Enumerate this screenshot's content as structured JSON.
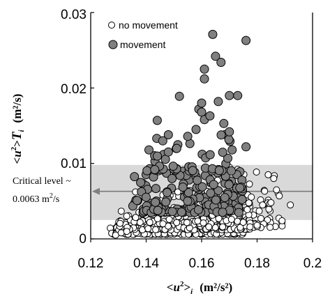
{
  "chart_data": {
    "type": "scatter",
    "xlabel": {
      "lt": "<",
      "var": "u",
      "sup": "2",
      "gt": ">",
      "sub": "i",
      "units": "(m²/s²)"
    },
    "ylabel": {
      "lt": "<",
      "var": "u",
      "sup": "2",
      "gt": ">",
      "T": "T",
      "sub": "i",
      "units": "(m²/s)"
    },
    "xlim": [
      0.12,
      0.2
    ],
    "ylim": [
      0,
      0.03
    ],
    "x_ticks": [
      "0.12",
      "0.14",
      "0.16",
      "0.18",
      "0.2"
    ],
    "y_ticks": [
      "0",
      "0.01",
      "0.02",
      "0.03"
    ],
    "grid": false,
    "legend_position": "top-left",
    "critical_band": {
      "y_min": 0.0025,
      "y_max": 0.0098,
      "color": "#d9d9d9"
    },
    "critical_line": {
      "y": 0.0063,
      "color": "#808080"
    },
    "annotation": {
      "line1": "Critical level ~",
      "line2_value": "0.0063 m",
      "line2_sup": "2",
      "line2_unit": "/s"
    },
    "series": [
      {
        "name": "no movement",
        "marker_fill": "#ffffff",
        "marker_stroke": "#000000",
        "clusters": [
          {
            "x": [
              0.127,
              0.175
            ],
            "y": [
              0.0006,
              0.0022
            ],
            "n": 240
          },
          {
            "x": [
              0.13,
              0.178
            ],
            "y": [
              0.0012,
              0.004
            ],
            "n": 160
          },
          {
            "x": [
              0.135,
              0.185
            ],
            "y": [
              0.002,
              0.0065
            ],
            "n": 90
          },
          {
            "x": [
              0.16,
              0.19
            ],
            "y": [
              0.0015,
              0.009
            ],
            "n": 70
          }
        ],
        "points": [
          [
            0.129,
            0.0005
          ],
          [
            0.131,
            0.0008
          ],
          [
            0.133,
            0.001
          ],
          [
            0.17,
            0.0095
          ],
          [
            0.173,
            0.0092
          ],
          [
            0.182,
            0.0045
          ],
          [
            0.185,
            0.0048
          ],
          [
            0.186,
            0.008
          ],
          [
            0.187,
            0.0065
          ],
          [
            0.188,
            0.0057
          ],
          [
            0.189,
            0.0024
          ],
          [
            0.192,
            0.0045
          ],
          [
            0.18,
            0.0018
          ],
          [
            0.175,
            0.0022
          ],
          [
            0.184,
            0.0085
          ]
        ]
      },
      {
        "name": "movement",
        "marker_fill": "#808080",
        "marker_stroke": "#000000",
        "clusters": [
          {
            "x": [
              0.135,
              0.175
            ],
            "y": [
              0.0035,
              0.009
            ],
            "n": 150
          },
          {
            "x": [
              0.14,
              0.172
            ],
            "y": [
              0.009,
              0.014
            ],
            "n": 45
          }
        ],
        "points": [
          [
            0.164,
            0.0271
          ],
          [
            0.176,
            0.0263
          ],
          [
            0.165,
            0.0242
          ],
          [
            0.167,
            0.0234
          ],
          [
            0.161,
            0.0225
          ],
          [
            0.161,
            0.0212
          ],
          [
            0.152,
            0.0189
          ],
          [
            0.17,
            0.019
          ],
          [
            0.173,
            0.019
          ],
          [
            0.159,
            0.0172
          ],
          [
            0.16,
            0.0168
          ],
          [
            0.16,
            0.018
          ],
          [
            0.166,
            0.0182
          ],
          [
            0.144,
            0.0157
          ],
          [
            0.168,
            0.0153
          ],
          [
            0.161,
            0.0158
          ],
          [
            0.163,
            0.0163
          ],
          [
            0.158,
            0.0145
          ],
          [
            0.17,
            0.0142
          ],
          [
            0.148,
            0.0138
          ],
          [
            0.155,
            0.0136
          ],
          [
            0.146,
            0.013
          ],
          [
            0.141,
            0.0118
          ],
          [
            0.176,
            0.0122
          ],
          [
            0.171,
            0.0118
          ]
        ]
      }
    ]
  }
}
